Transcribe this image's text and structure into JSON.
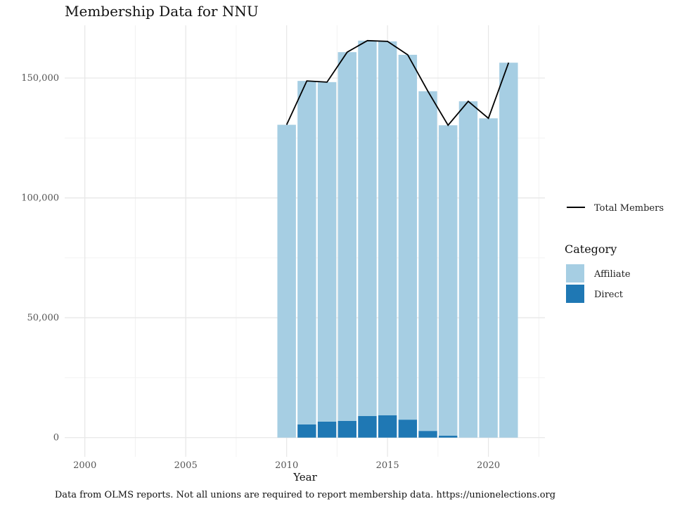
{
  "chart_data": {
    "type": "bar",
    "title": "Membership Data for NNU",
    "xlabel": "Year",
    "ylabel": "",
    "caption": "Data from OLMS reports. Not all unions are required to report membership data. https://unionelections.org",
    "xlim": [
      1999,
      2022.8
    ],
    "ylim": [
      -8000,
      172000
    ],
    "x_ticks": [
      2000,
      2005,
      2010,
      2015,
      2020
    ],
    "x_tick_labels": [
      "2000",
      "2005",
      "2010",
      "2015",
      "2020"
    ],
    "y_ticks": [
      0,
      50000,
      100000,
      150000
    ],
    "y_tick_labels": [
      "0",
      "50,000",
      "100,000",
      "150,000"
    ],
    "grid": true,
    "stacked": true,
    "legend_position": "right",
    "years": [
      2010,
      2011,
      2012,
      2013,
      2014,
      2015,
      2016,
      2017,
      2018,
      2019,
      2020,
      2021
    ],
    "series": [
      {
        "name": "Direct",
        "color": "#1f78b4",
        "values": [
          0,
          5500,
          6700,
          7000,
          9000,
          9300,
          7500,
          2800,
          800,
          0,
          0,
          0
        ]
      },
      {
        "name": "Affiliate",
        "color": "#a6cee3",
        "values": [
          130500,
          143300,
          141600,
          153800,
          156600,
          156000,
          152200,
          141700,
          129500,
          140300,
          133200,
          156400
        ]
      }
    ],
    "line": {
      "name": "Total Members",
      "color": "#000000",
      "values": [
        130500,
        148800,
        148300,
        160800,
        165600,
        165300,
        159700,
        144500,
        130300,
        140300,
        133200,
        156400
      ]
    },
    "legend": {
      "line_label": "Total Members",
      "title": "Category",
      "items": [
        "Affiliate",
        "Direct"
      ]
    }
  }
}
